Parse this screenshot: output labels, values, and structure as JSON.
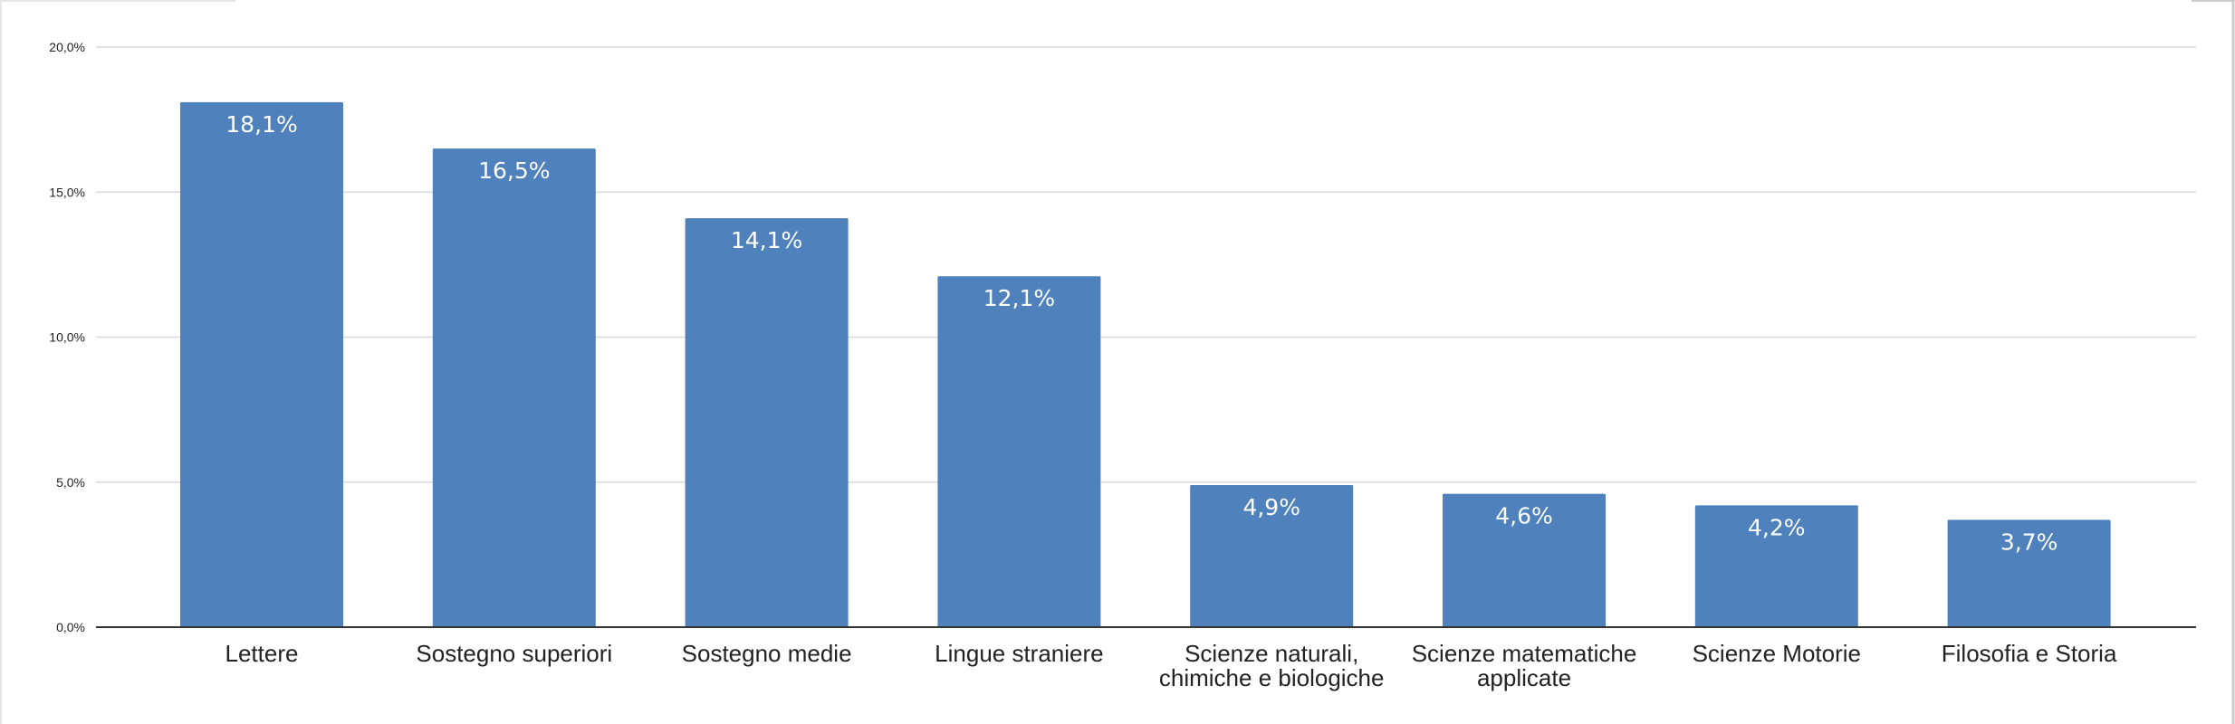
{
  "chart_data": {
    "type": "bar",
    "title": "",
    "xlabel": "",
    "ylabel": "",
    "categories": [
      [
        "Lettere"
      ],
      [
        "Sostegno superiori"
      ],
      [
        "Sostegno medie"
      ],
      [
        "Lingue straniere"
      ],
      [
        "Scienze naturali,",
        "chimiche e biologiche"
      ],
      [
        "Scienze matematiche",
        "applicate"
      ],
      [
        "Scienze Motorie"
      ],
      [
        "Filosofia e Storia"
      ]
    ],
    "values": [
      18.1,
      16.5,
      14.1,
      12.1,
      4.9,
      4.6,
      4.2,
      3.7
    ],
    "data_labels": [
      "18,1%",
      "16,5%",
      "14,1%",
      "12,1%",
      "4,9%",
      "4,6%",
      "4,2%",
      "3,7%"
    ],
    "ylim": [
      0,
      20
    ],
    "yticks": [
      0,
      5,
      10,
      15,
      20
    ],
    "ytick_labels": [
      "0,0%",
      "5,0%",
      "10,0%",
      "15,0%",
      "20,0%"
    ],
    "grid": true,
    "legend": "none",
    "colors": {
      "bar": "#4f81bd",
      "gridline": "#d9d9d9",
      "axis": "#333333",
      "frame": "#cccccc",
      "data_label": "#ffffff"
    }
  }
}
